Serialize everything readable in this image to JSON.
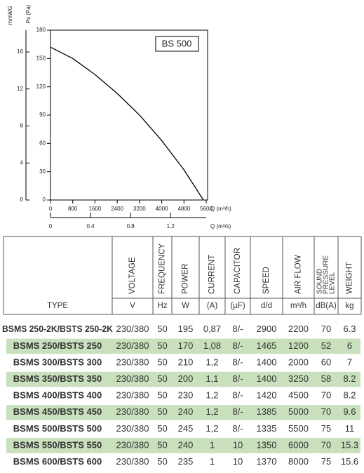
{
  "chart_data": {
    "type": "line",
    "title": "BS 500",
    "y_label": "Ps (Pa)",
    "y2_label": "mmWG",
    "x_label": "Q (m³/h)",
    "x2_label": "Q (m³/s)",
    "x": [
      0,
      800,
      1600,
      2400,
      3200,
      4000,
      4800,
      5500
    ],
    "series": [
      {
        "color": "#000000",
        "values": [
          162,
          150,
          133,
          113,
          90,
          63,
          32,
          0
        ]
      }
    ],
    "xlim": [
      0,
      5600
    ],
    "xticks": [
      0,
      800,
      1600,
      2400,
      3200,
      4000,
      4800,
      5600
    ],
    "x2lim": [
      0,
      1.556
    ],
    "x2ticks": [
      0,
      0.4,
      0.8,
      1.2
    ],
    "ylim": [
      0,
      180
    ],
    "yticks": [
      0,
      30,
      60,
      90,
      120,
      150,
      180
    ],
    "y2lim": [
      0,
      18.35
    ],
    "y2ticks": [
      0,
      4,
      8,
      12,
      16
    ],
    "grid": false
  },
  "table": {
    "type_header": "TYPE",
    "columns": [
      {
        "label": "VOLTAGE",
        "unit": "V"
      },
      {
        "label": "FREQUENCY",
        "unit": "Hz"
      },
      {
        "label": "POWER",
        "unit": "W"
      },
      {
        "label": "CURRENT",
        "unit": "(A)"
      },
      {
        "label": "CAPACITOR",
        "unit": "(µF)"
      },
      {
        "label": "SPEED",
        "unit": "d/d"
      },
      {
        "label": "AIR FLOW",
        "unit": "m³/h"
      },
      {
        "label": [
          "SOUND",
          "PRESSURE",
          "LEVEL"
        ],
        "unit": "dB(A)"
      },
      {
        "label": "WEIGHT",
        "unit": "kg"
      }
    ],
    "rows": [
      [
        "BSMS 250-2K/BSTS 250-2K",
        "230/380",
        "50",
        "195",
        "0,87",
        "8/-",
        "2900",
        "2200",
        "70",
        "6.3"
      ],
      [
        "BSMS 250/BSTS 250",
        "230/380",
        "50",
        "170",
        "1,08",
        "8/-",
        "1465",
        "1200",
        "52",
        "6"
      ],
      [
        "BSMS 300/BSTS 300",
        "230/380",
        "50",
        "210",
        "1,2",
        "8/-",
        "1400",
        "2000",
        "60",
        "7"
      ],
      [
        "BSMS 350/BSTS 350",
        "230/380",
        "50",
        "200",
        "1,1",
        "8/-",
        "1400",
        "3250",
        "58",
        "8.2"
      ],
      [
        "BSMS 400/BSTS 400",
        "230/380",
        "50",
        "230",
        "1,2",
        "8/-",
        "1420",
        "4500",
        "70",
        "8.2"
      ],
      [
        "BSMS 450/BSTS 450",
        "230/380",
        "50",
        "240",
        "1,2",
        "8/-",
        "1385",
        "5000",
        "70",
        "9.6"
      ],
      [
        "BSMS 500/BSTS 500",
        "230/380",
        "50",
        "245",
        "1,2",
        "8/-",
        "1335",
        "5500",
        "75",
        "11"
      ],
      [
        "BSMS 550/BSTS 550",
        "230/380",
        "50",
        "240",
        "1",
        "10",
        "1350",
        "6000",
        "70",
        "15.3"
      ],
      [
        "BSMS 600/BSTS 600",
        "230/380",
        "50",
        "235",
        "1",
        "10",
        "1370",
        "8000",
        "75",
        "15.6"
      ]
    ]
  }
}
